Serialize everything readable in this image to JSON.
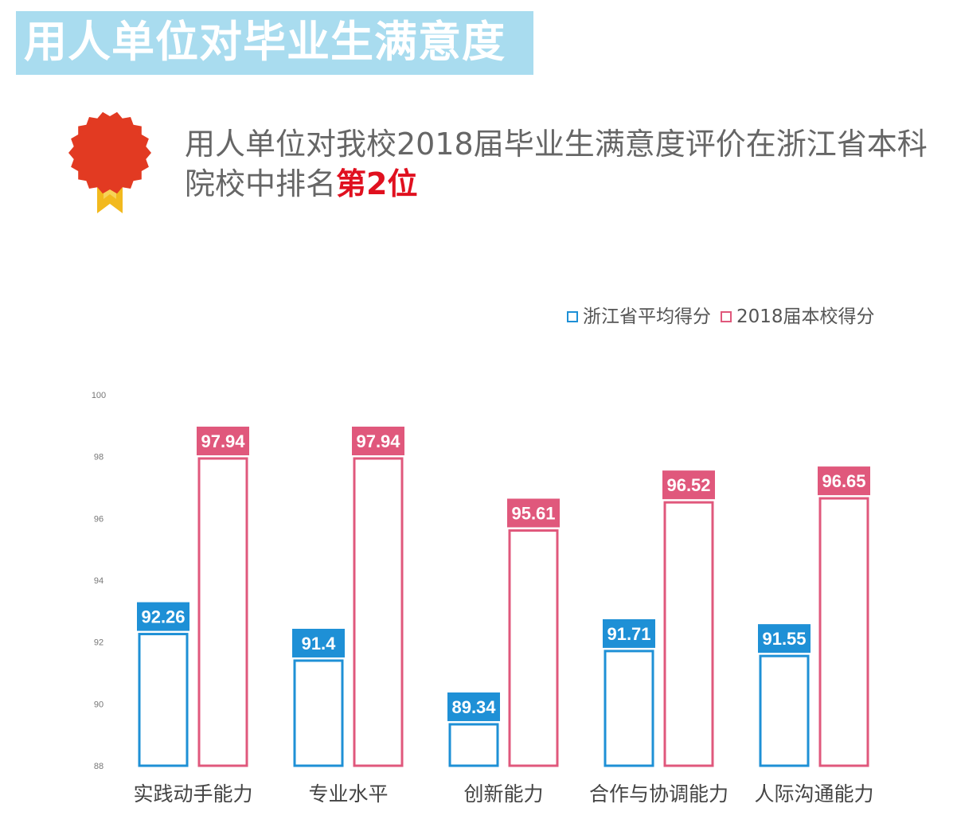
{
  "header": {
    "title": "用人单位对毕业生满意度"
  },
  "summary": {
    "text": "用人单位对我校2018届毕业生满意度评价在浙江省本科院校中排名",
    "highlight": "第2位"
  },
  "colors": {
    "banner": "#a9dcef",
    "blue": "#1e90d6",
    "pink": "#e0587c",
    "highlight": "#e0101f"
  },
  "chart_data": {
    "type": "bar",
    "categories": [
      "实践动手能力",
      "专业水平",
      "创新能力",
      "合作与协调能力",
      "人际沟通能力"
    ],
    "series": [
      {
        "name": "浙江省平均得分",
        "values": [
          92.26,
          91.4,
          89.34,
          91.71,
          91.55
        ],
        "labels": [
          "92.26",
          "91.4",
          "89.34",
          "91.71",
          "91.55"
        ]
      },
      {
        "name": "2018届本校得分",
        "values": [
          97.94,
          97.94,
          95.61,
          96.52,
          96.65
        ],
        "labels": [
          "97.94",
          "97.94",
          "95.61",
          "96.52",
          "96.65"
        ]
      }
    ],
    "ylim": [
      88,
      100
    ],
    "yticks": [
      "88",
      "90",
      "92",
      "94",
      "96",
      "98",
      "100"
    ],
    "legend_position": "top-right",
    "grid": false
  }
}
